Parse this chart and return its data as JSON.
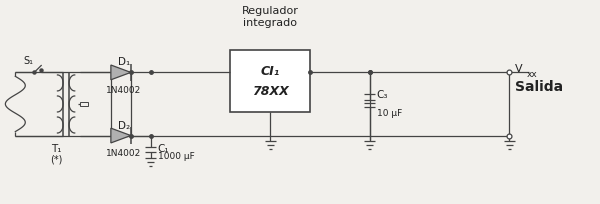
{
  "bg_color": "#f2f0ec",
  "line_color": "#444444",
  "text_color": "#222222",
  "figsize": [
    6.0,
    2.05
  ],
  "dpi": 100,
  "regulador_label": "Regulador\nintegrado",
  "ci_label1": "CI₁",
  "ci_label2": "78XX",
  "s1_label": "S₁",
  "t1_label": "T₁",
  "star_label": "(*)",
  "d1_label": "D₁",
  "d1_sub": "1N4002",
  "d2_label": "D₂",
  "d2_sub": "1N4002",
  "c1_label": "C₁",
  "c1_sub": "1000 μF",
  "c3_label": "C₃",
  "c3_sub": "10 μF",
  "salida_label": "Salida",
  "top_y": 1.32,
  "bot_y": 0.68,
  "xlim": [
    0,
    6.0
  ],
  "ylim": [
    0,
    2.05
  ]
}
